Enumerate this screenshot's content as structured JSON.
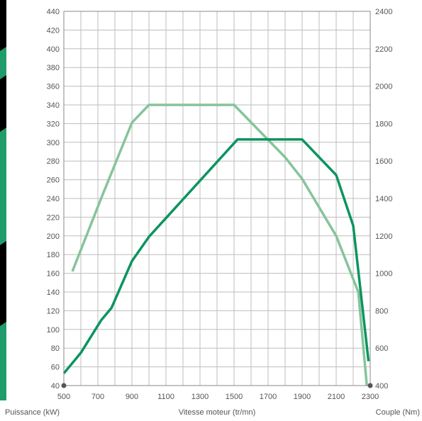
{
  "colors": {
    "power": "#86c49a",
    "torque": "#0c9460",
    "sidebar_bg": "#000000",
    "sidebar_accent": "#1f9c6a",
    "grid": "#bdbdbd",
    "text": "#555555"
  },
  "chart_data": {
    "type": "line",
    "title": "",
    "xlabel": "Vitesse moteur (tr/mn)",
    "ylabel_left": "Puissance (kW)",
    "ylabel_right": "Couple (Nm)",
    "xlim": [
      500,
      2300
    ],
    "ylim_left": [
      40,
      440
    ],
    "ylim_right": [
      400,
      2400
    ],
    "grid": true,
    "legend": "none",
    "x_ticks": [
      "500",
      "700",
      "900",
      "1100",
      "1300",
      "1500",
      "1700",
      "1900",
      "2100",
      "2300"
    ],
    "y_left_ticks": [
      "40",
      "60",
      "80",
      "100",
      "120",
      "140",
      "160",
      "180",
      "200",
      "220",
      "240",
      "260",
      "280",
      "300",
      "320",
      "340",
      "360",
      "380",
      "400",
      "420",
      "440"
    ],
    "y_right_ticks": [
      "400",
      "600",
      "800",
      "1000",
      "1200",
      "1400",
      "1600",
      "1800",
      "2000",
      "2200",
      "2400"
    ],
    "series": [
      {
        "axis": "left",
        "color": "#86c49a",
        "points": [
          [
            550,
            162
          ],
          [
            730,
            245
          ],
          [
            900,
            321
          ],
          [
            1000,
            340
          ],
          [
            1500,
            340
          ],
          [
            1800,
            284
          ],
          [
            1900,
            261
          ],
          [
            2100,
            200
          ],
          [
            2230,
            140
          ],
          [
            2280,
            40
          ]
        ]
      },
      {
        "axis": "left",
        "color": "#0c9460",
        "points": [
          [
            500,
            53
          ],
          [
            600,
            75
          ],
          [
            720,
            110
          ],
          [
            780,
            123
          ],
          [
            900,
            173
          ],
          [
            1000,
            199
          ],
          [
            1520,
            303
          ],
          [
            1900,
            303
          ],
          [
            2100,
            265
          ],
          [
            2200,
            211
          ],
          [
            2290,
            66
          ]
        ]
      }
    ],
    "markers": [
      [
        500,
        40
      ],
      [
        2300,
        40
      ]
    ]
  }
}
